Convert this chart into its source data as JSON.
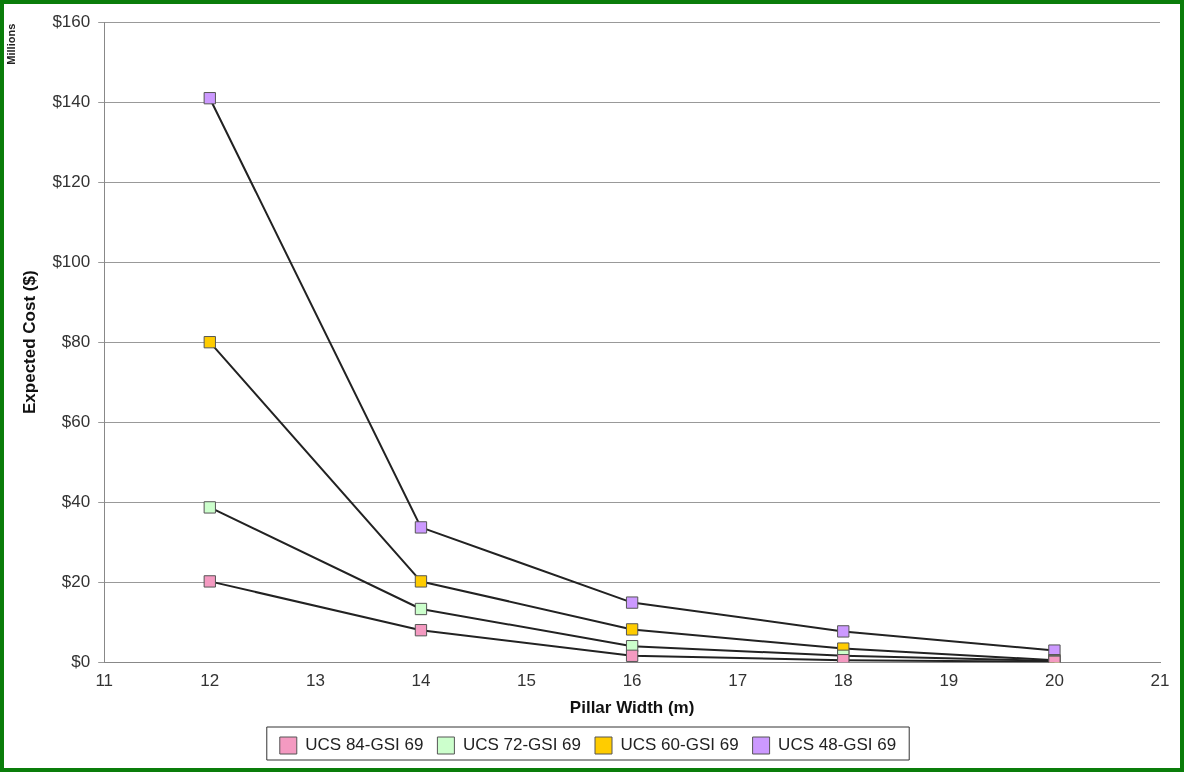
{
  "chart_data": {
    "type": "line",
    "xlabel": "Pillar Width (m)",
    "ylabel": "Expected Cost ($)",
    "annotations": [
      "Millions"
    ],
    "x": [
      12,
      14,
      16,
      18,
      20
    ],
    "series": [
      {
        "name": "UCS 84-GSI 69",
        "color": "#f49ac1",
        "values": [
          20.2,
          8,
          1.6,
          0.5,
          0.1
        ]
      },
      {
        "name": "UCS 72-GSI 69",
        "color": "#ccffcc",
        "values": [
          38.7,
          13.3,
          4,
          1.6,
          0.3
        ]
      },
      {
        "name": "UCS 60-GSI 69",
        "color": "#ffcc00",
        "values": [
          80,
          20.2,
          8.2,
          3.4,
          0.5
        ]
      },
      {
        "name": "UCS 48-GSI 69",
        "color": "#cc99ff",
        "values": [
          141,
          33.7,
          14.9,
          7.7,
          2.9
        ]
      }
    ],
    "xlim": [
      11,
      21
    ],
    "xticks": [
      11,
      12,
      13,
      14,
      15,
      16,
      17,
      18,
      19,
      20,
      21
    ],
    "ylim": [
      0,
      160
    ],
    "yticks": [
      {
        "value": 0,
        "label": "$0"
      },
      {
        "value": 20,
        "label": "$20"
      },
      {
        "value": 40,
        "label": "$40"
      },
      {
        "value": 60,
        "label": "$60"
      },
      {
        "value": 80,
        "label": "$80"
      },
      {
        "value": 100,
        "label": "$100"
      },
      {
        "value": 120,
        "label": "$120"
      },
      {
        "value": 140,
        "label": "$140"
      },
      {
        "value": 160,
        "label": "$160"
      }
    ],
    "grid": "y",
    "legend": "bottom",
    "marker": "square",
    "line_style": "solid"
  }
}
